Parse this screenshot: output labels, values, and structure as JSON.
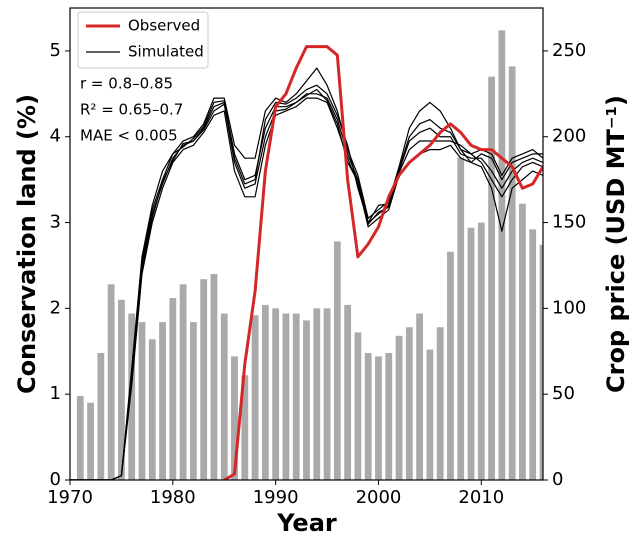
{
  "chart_data": {
    "type": "bar-line",
    "x_label": "Year",
    "y_label": "Conservation land (%)",
    "y2_label": "Crop price (USD MT⁻¹)",
    "annotations": [
      "r = 0.8–0.85",
      "R² = 0.65–0.7",
      "MAE < 0.005"
    ],
    "x": [
      1970,
      1971,
      1972,
      1973,
      1974,
      1975,
      1976,
      1977,
      1978,
      1979,
      1980,
      1981,
      1982,
      1983,
      1984,
      1985,
      1986,
      1987,
      1988,
      1989,
      1990,
      1991,
      1992,
      1993,
      1994,
      1995,
      1996,
      1997,
      1998,
      1999,
      2000,
      2001,
      2002,
      2003,
      2004,
      2005,
      2006,
      2007,
      2008,
      2009,
      2010,
      2011,
      2012,
      2013,
      2014,
      2015,
      2016
    ],
    "xlim": [
      1970,
      2016
    ],
    "xticks": [
      1970,
      1980,
      1990,
      2000,
      2010
    ],
    "ylim": [
      0,
      5.5
    ],
    "yticks": [
      0,
      1,
      2,
      3,
      4,
      5
    ],
    "y2lim": [
      0,
      275
    ],
    "y2ticks": [
      0,
      50,
      100,
      150,
      200,
      250
    ],
    "legend": "upper left",
    "bars": {
      "color": "#aaaaaa",
      "axis": "y2",
      "values": [
        null,
        49,
        45,
        74,
        114,
        105,
        97,
        92,
        82,
        92,
        106,
        114,
        92,
        117,
        120,
        97,
        72,
        61,
        96,
        102,
        100,
        97,
        97,
        93,
        100,
        100,
        139,
        102,
        86,
        74,
        72,
        74,
        84,
        89,
        97,
        76,
        89,
        133,
        188,
        147,
        150,
        235,
        262,
        241,
        161,
        146,
        137
      ]
    },
    "observed": {
      "name": "Observed",
      "color": "#d62728",
      "values": [
        null,
        null,
        null,
        null,
        null,
        null,
        null,
        null,
        null,
        null,
        null,
        null,
        null,
        null,
        null,
        0,
        0.07,
        1.35,
        2.2,
        3.6,
        4.35,
        4.5,
        4.8,
        5.05,
        5.05,
        5.05,
        4.95,
        3.5,
        2.6,
        2.75,
        2.95,
        3.3,
        3.55,
        3.7,
        3.8,
        3.9,
        4.05,
        4.15,
        4.05,
        3.9,
        3.85,
        3.85,
        3.75,
        3.65,
        3.4,
        3.45,
        3.65
      ]
    },
    "simulated": {
      "name": "Simulated",
      "color": "#000000",
      "runs": [
        [
          0,
          0,
          0,
          0,
          0,
          0.05,
          1.2,
          2.5,
          3.1,
          3.45,
          3.75,
          3.9,
          3.95,
          4.1,
          4.35,
          4.4,
          3.8,
          3.5,
          3.55,
          4.1,
          4.35,
          4.35,
          4.4,
          4.5,
          4.5,
          4.45,
          4.2,
          3.8,
          3.5,
          3.0,
          3.1,
          3.2,
          3.6,
          3.95,
          4.05,
          4.1,
          4.0,
          4.0,
          3.8,
          3.75,
          3.75,
          3.6,
          3.4,
          3.6,
          3.7,
          3.75,
          3.7
        ],
        [
          0,
          0,
          0,
          0,
          0,
          0.05,
          1.3,
          2.6,
          3.2,
          3.6,
          3.8,
          3.95,
          4.0,
          4.15,
          4.45,
          4.45,
          3.9,
          3.75,
          3.75,
          4.3,
          4.45,
          4.4,
          4.5,
          4.65,
          4.8,
          4.6,
          4.3,
          3.85,
          3.55,
          3.05,
          3.15,
          3.25,
          3.65,
          4.1,
          4.3,
          4.4,
          4.3,
          4.1,
          3.85,
          3.7,
          3.8,
          3.75,
          3.5,
          3.7,
          3.75,
          3.8,
          3.8
        ],
        [
          0,
          0,
          0,
          0,
          0,
          0.05,
          1.1,
          2.4,
          3.0,
          3.4,
          3.7,
          3.85,
          3.9,
          4.05,
          4.25,
          4.3,
          3.6,
          3.3,
          3.3,
          3.9,
          4.25,
          4.3,
          4.35,
          4.45,
          4.45,
          4.4,
          4.1,
          3.75,
          3.45,
          2.95,
          3.05,
          3.15,
          3.55,
          3.7,
          3.8,
          3.85,
          3.85,
          3.9,
          3.75,
          3.7,
          3.65,
          3.4,
          2.9,
          3.4,
          3.5,
          3.6,
          3.55
        ],
        [
          0,
          0,
          0,
          0,
          0,
          0.05,
          1.25,
          2.55,
          3.15,
          3.5,
          3.8,
          3.88,
          3.98,
          4.12,
          4.4,
          4.42,
          3.75,
          3.45,
          3.5,
          4.2,
          4.4,
          4.38,
          4.45,
          4.55,
          4.6,
          4.5,
          4.25,
          3.9,
          3.4,
          3.0,
          3.2,
          3.22,
          3.62,
          4.0,
          4.15,
          4.2,
          4.1,
          4.05,
          3.85,
          3.8,
          3.85,
          3.8,
          3.55,
          3.75,
          3.8,
          3.85,
          3.75
        ],
        [
          0,
          0,
          0,
          0,
          0,
          0.05,
          1.15,
          2.45,
          3.05,
          3.48,
          3.72,
          3.92,
          3.95,
          4.08,
          4.3,
          4.38,
          3.7,
          3.4,
          3.45,
          4.0,
          4.3,
          4.32,
          4.4,
          4.48,
          4.55,
          4.42,
          4.15,
          3.7,
          3.48,
          2.98,
          3.12,
          3.18,
          3.58,
          3.85,
          3.95,
          3.95,
          3.95,
          3.95,
          3.9,
          3.8,
          3.7,
          3.5,
          3.3,
          3.5,
          3.65,
          3.7,
          3.65
        ]
      ]
    }
  }
}
